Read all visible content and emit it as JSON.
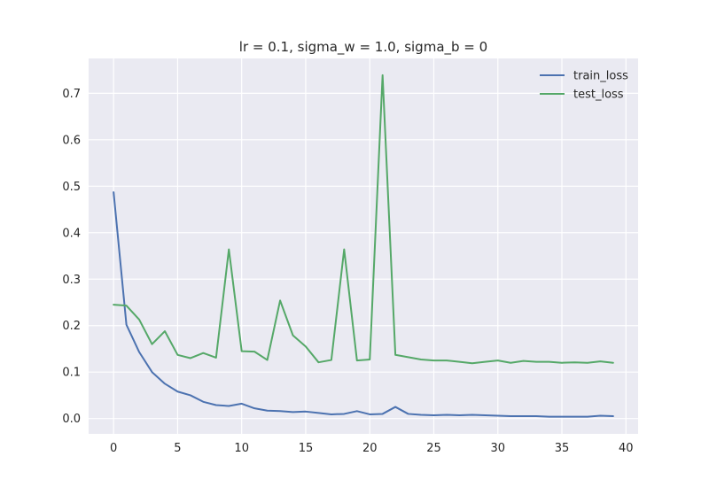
{
  "chart_data": {
    "type": "line",
    "title": "lr = 0.1, sigma_w = 1.0, sigma_b = 0",
    "xlabel": "",
    "ylabel": "",
    "xlim": [
      -1.95,
      40.95
    ],
    "ylim": [
      -0.033,
      0.775
    ],
    "x_ticks": [
      0,
      5,
      10,
      15,
      20,
      25,
      30,
      35,
      40
    ],
    "y_ticks": [
      0.0,
      0.1,
      0.2,
      0.3,
      0.4,
      0.5,
      0.6,
      0.7
    ],
    "y_tick_labels": [
      "0.0",
      "0.1",
      "0.2",
      "0.3",
      "0.4",
      "0.5",
      "0.6",
      "0.7"
    ],
    "grid": true,
    "legend_position": "top-right",
    "x": [
      0,
      1,
      2,
      3,
      4,
      5,
      6,
      7,
      8,
      9,
      10,
      11,
      12,
      13,
      14,
      15,
      16,
      17,
      18,
      19,
      20,
      21,
      22,
      23,
      24,
      25,
      26,
      27,
      28,
      29,
      30,
      31,
      32,
      33,
      34,
      35,
      36,
      37,
      38,
      39
    ],
    "series": [
      {
        "name": "train_loss",
        "color": "#4c72b0",
        "values": [
          0.487,
          0.202,
          0.143,
          0.1,
          0.075,
          0.058,
          0.05,
          0.036,
          0.029,
          0.027,
          0.032,
          0.022,
          0.017,
          0.016,
          0.014,
          0.015,
          0.012,
          0.009,
          0.01,
          0.016,
          0.009,
          0.01,
          0.025,
          0.01,
          0.008,
          0.007,
          0.008,
          0.007,
          0.008,
          0.007,
          0.006,
          0.005,
          0.005,
          0.005,
          0.004,
          0.004,
          0.004,
          0.004,
          0.006,
          0.005
        ]
      },
      {
        "name": "test_loss",
        "color": "#55a868",
        "values": [
          0.245,
          0.243,
          0.213,
          0.16,
          0.188,
          0.137,
          0.13,
          0.141,
          0.131,
          0.364,
          0.145,
          0.144,
          0.126,
          0.254,
          0.179,
          0.155,
          0.121,
          0.126,
          0.364,
          0.125,
          0.127,
          0.739,
          0.137,
          0.132,
          0.127,
          0.125,
          0.125,
          0.122,
          0.119,
          0.122,
          0.125,
          0.12,
          0.124,
          0.122,
          0.122,
          0.12,
          0.121,
          0.12,
          0.123,
          0.12
        ]
      }
    ]
  }
}
